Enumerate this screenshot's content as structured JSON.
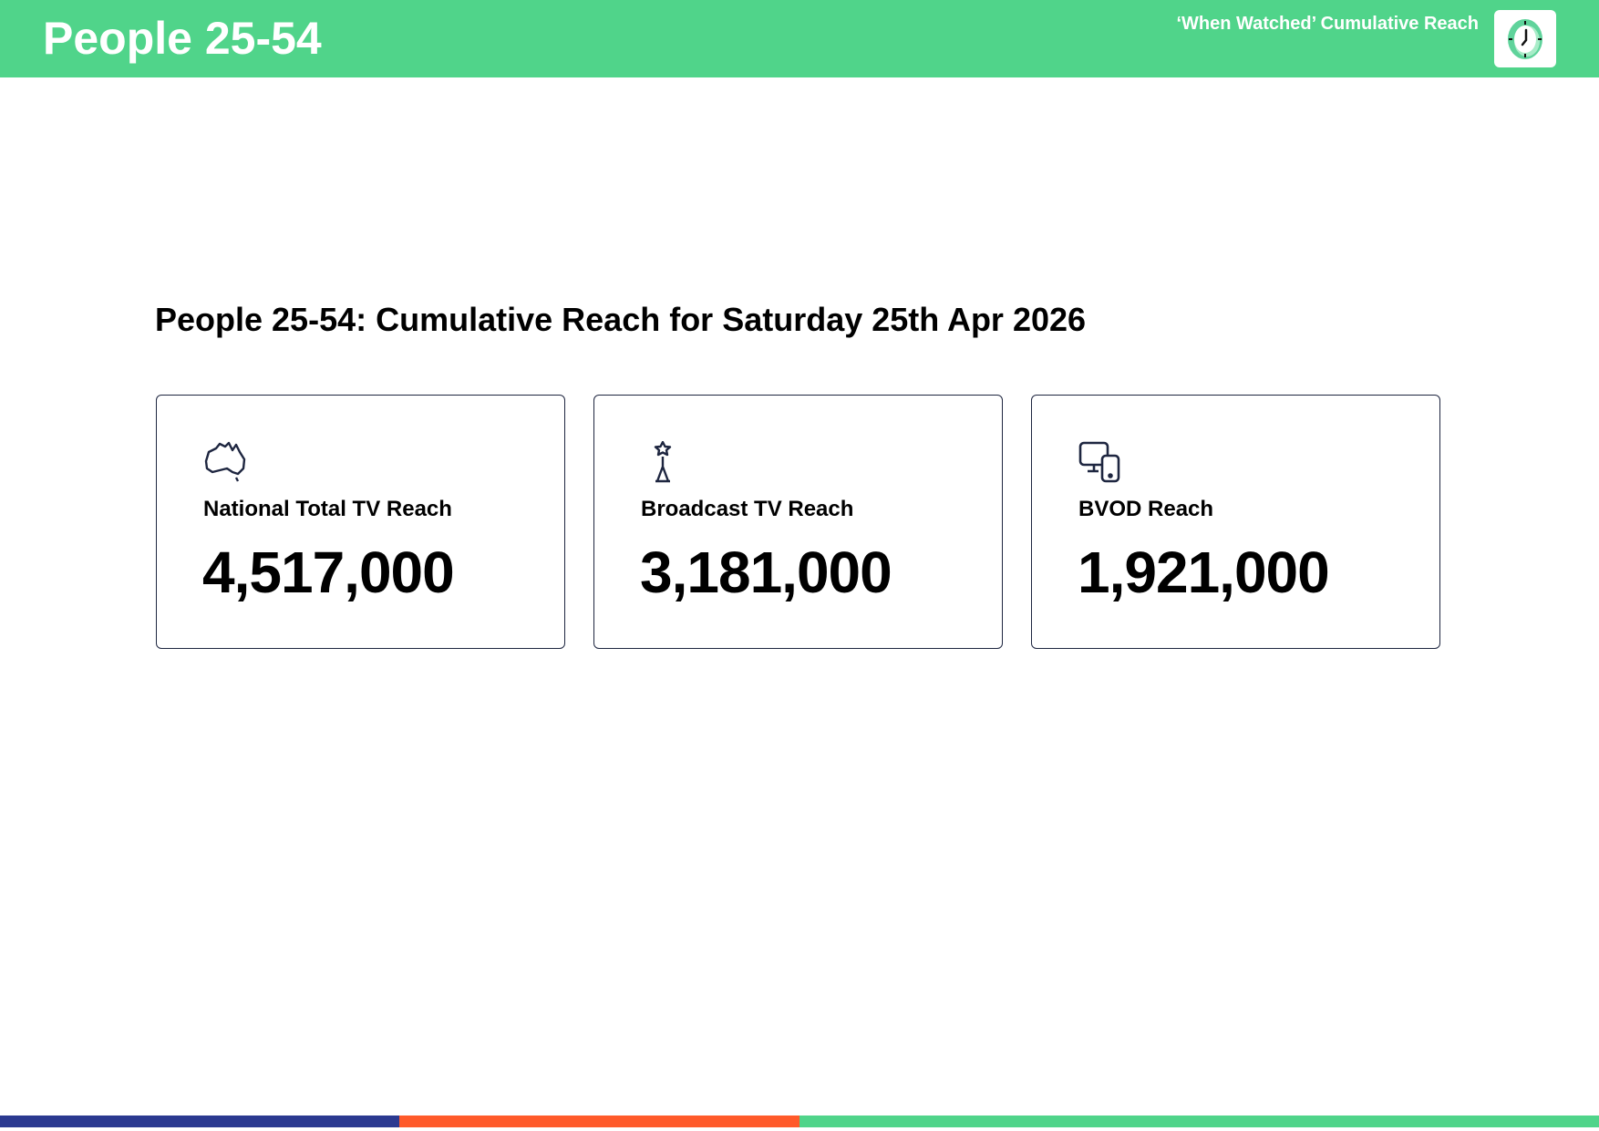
{
  "header": {
    "title": "People 25-54",
    "subtitle": "‘When Watched’ Cumulative Reach",
    "icon": "clock-icon",
    "color": "#50d48a"
  },
  "main": {
    "heading": "People 25-54: Cumulative Reach for Saturday 25th Apr 2026",
    "cards": [
      {
        "icon": "australia-map-icon",
        "label": "National Total TV Reach",
        "value": "4,517,000"
      },
      {
        "icon": "broadcast-tower-icon",
        "label": "Broadcast TV Reach",
        "value": "3,181,000"
      },
      {
        "icon": "devices-icon",
        "label": "BVOD Reach",
        "value": "1,921,000"
      }
    ]
  },
  "footer": {
    "bar_colors": [
      "#2b3990",
      "#ff5a2a",
      "#50d48a"
    ]
  }
}
